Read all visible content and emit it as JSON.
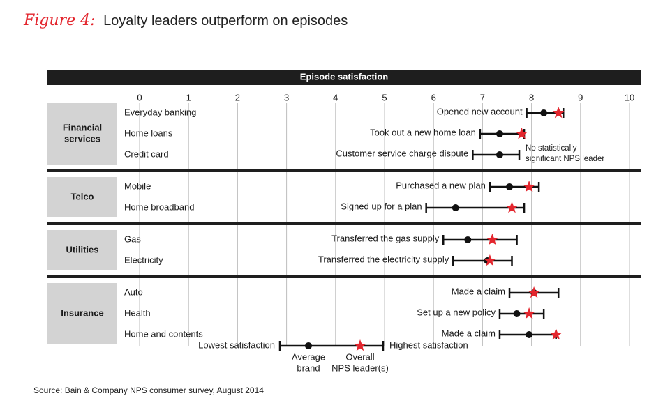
{
  "figure": {
    "label": "Figure 4:",
    "title": "Loyalty leaders outperform on episodes",
    "source": "Source: Bain & Company NPS consumer survey, August 2014"
  },
  "chart_data": {
    "type": "range-dot",
    "header": "Episode satisfaction",
    "xlim": [
      0,
      10
    ],
    "ticks": [
      0,
      1,
      2,
      3,
      4,
      5,
      6,
      7,
      8,
      9,
      10
    ],
    "grid": true,
    "groups": [
      {
        "name": "Financial\nservices",
        "rows": [
          {
            "category": "Everyday banking",
            "episode": "Opened new account",
            "low": 7.9,
            "high": 8.65,
            "average": 8.25,
            "leader": 8.55
          },
          {
            "category": "Home loans",
            "episode": "Took out a new home loan",
            "low": 6.95,
            "high": 7.85,
            "average": 7.35,
            "leader": 7.8
          },
          {
            "category": "Credit card",
            "episode": "Customer service charge dispute",
            "low": 6.8,
            "high": 7.75,
            "average": 7.35,
            "leader": null,
            "note": "No statistically significant NPS leader"
          }
        ]
      },
      {
        "name": "Telco",
        "rows": [
          {
            "category": "Mobile",
            "episode": "Purchased a new plan",
            "low": 7.15,
            "high": 8.15,
            "average": 7.55,
            "leader": 7.95
          },
          {
            "category": "Home broadband",
            "episode": "Signed up for a plan",
            "low": 5.85,
            "high": 7.85,
            "average": 6.45,
            "leader": 7.6
          }
        ]
      },
      {
        "name": "Utilities",
        "rows": [
          {
            "category": "Gas",
            "episode": "Transferred the gas supply",
            "low": 6.2,
            "high": 7.7,
            "average": 6.7,
            "leader": 7.2
          },
          {
            "category": "Electricity",
            "episode": "Transferred the electricity supply",
            "low": 6.4,
            "high": 7.6,
            "average": 7.1,
            "leader": 7.15
          }
        ]
      },
      {
        "name": "Insurance",
        "rows": [
          {
            "category": "Auto",
            "episode": "Made a claim",
            "low": 7.55,
            "high": 8.55,
            "average": 8.05,
            "leader": 8.05
          },
          {
            "category": "Health",
            "episode": "Set up a new policy",
            "low": 7.35,
            "high": 8.25,
            "average": 7.7,
            "leader": 7.95
          },
          {
            "category": "Home and contents",
            "episode": "Made a claim",
            "low": 7.35,
            "high": 8.5,
            "average": 7.95,
            "leader": 8.5
          }
        ]
      }
    ],
    "legend": {
      "lowest": "Lowest satisfaction",
      "highest": "Highest satisfaction",
      "average": "Average\nbrand",
      "leader": "Overall\nNPS leader(s)"
    },
    "colors": {
      "header": "#1e1e1e",
      "group_box": "#d3d3d3",
      "grid": "#bdbdbd",
      "star": "#e3262e",
      "bar": "#111111"
    }
  }
}
